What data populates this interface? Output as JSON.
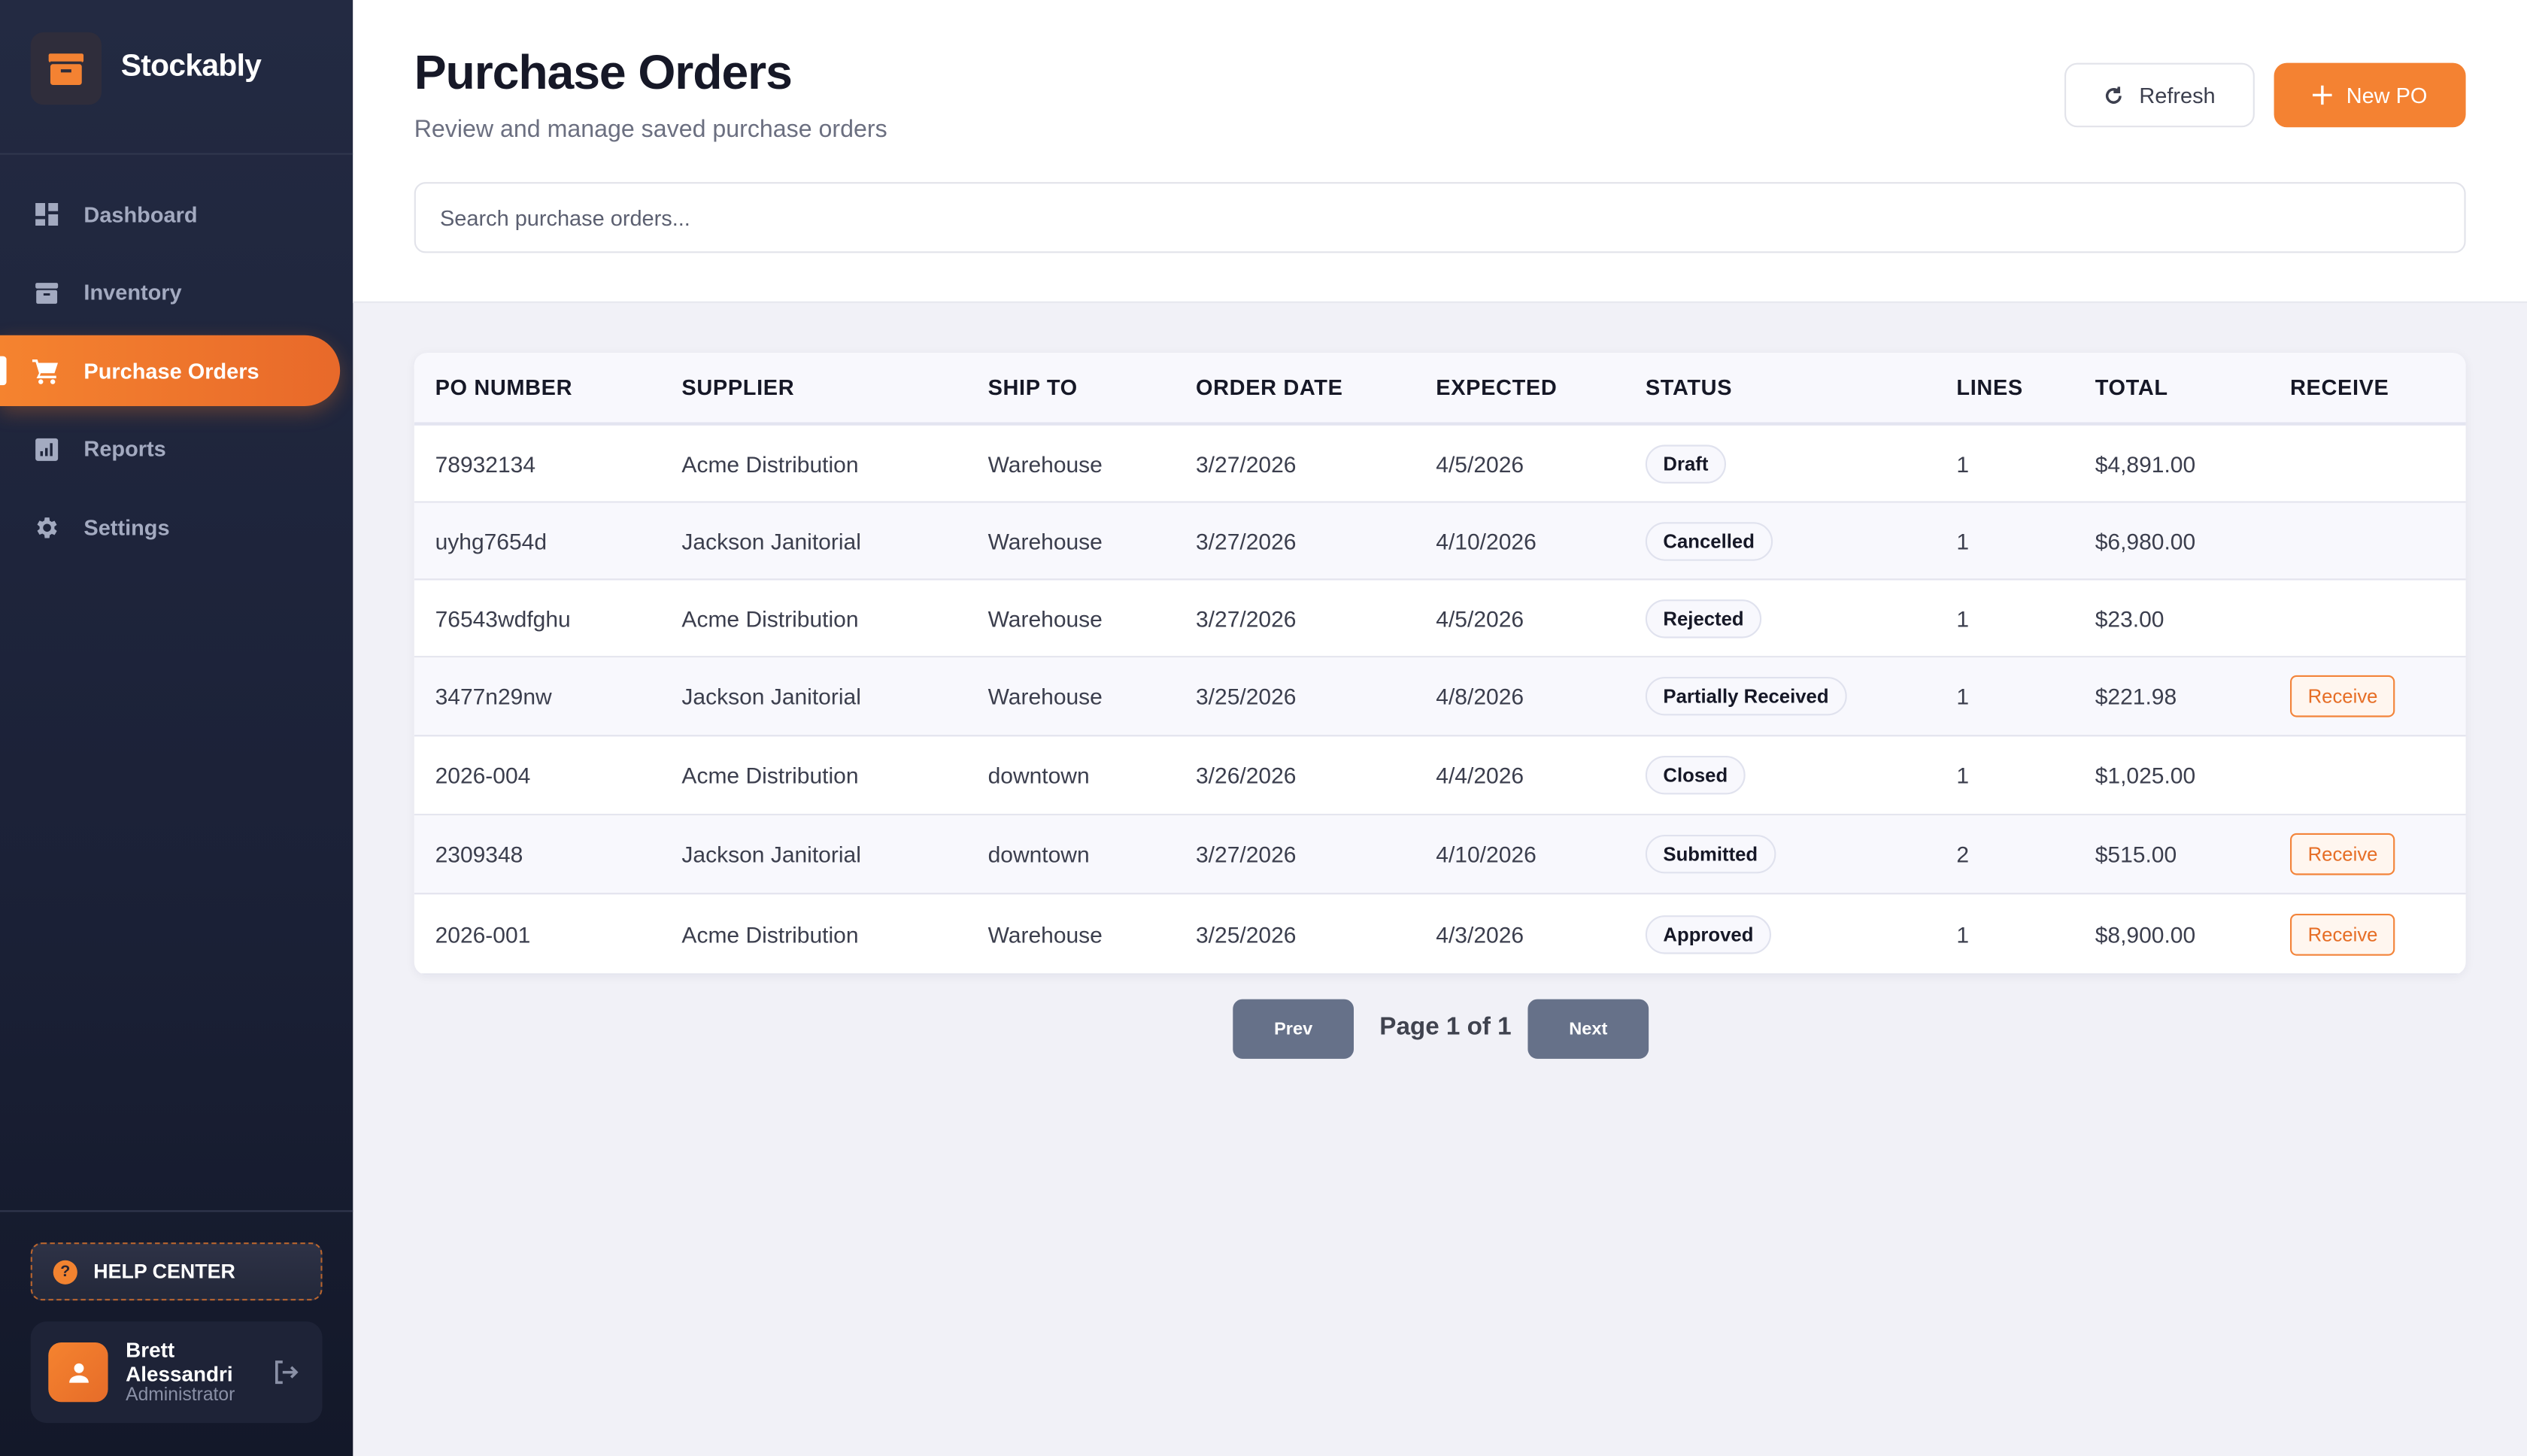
{
  "app": {
    "name": "Stockably",
    "accent": "#f48232"
  },
  "sidebar": {
    "items": [
      {
        "label": "Dashboard",
        "icon": "dashboard-icon"
      },
      {
        "label": "Inventory",
        "icon": "archive-box-icon"
      },
      {
        "label": "Purchase Orders",
        "icon": "cart-icon",
        "active": true
      },
      {
        "label": "Reports",
        "icon": "chart-icon"
      },
      {
        "label": "Settings",
        "icon": "gear-icon"
      }
    ],
    "help_label": "HELP CENTER",
    "user": {
      "name": "Brett Alessandri",
      "role": "Administrator"
    }
  },
  "header": {
    "title": "Purchase Orders",
    "subtitle": "Review and manage saved purchase orders",
    "refresh_label": "Refresh",
    "new_label": "New PO",
    "search_placeholder": "Search purchase orders..."
  },
  "table": {
    "columns": [
      "PO NUMBER",
      "SUPPLIER",
      "SHIP TO",
      "ORDER DATE",
      "EXPECTED",
      "STATUS",
      "LINES",
      "TOTAL",
      "RECEIVE"
    ],
    "rows": [
      {
        "po": "78932134",
        "supplier": "Acme Distribution",
        "ship_to": "Warehouse",
        "order_date": "3/27/2026",
        "expected": "4/5/2026",
        "status": "Draft",
        "lines": "1",
        "total": "$4,891.00",
        "receive": ""
      },
      {
        "po": "uyhg7654d",
        "supplier": "Jackson Janitorial",
        "ship_to": "Warehouse",
        "order_date": "3/27/2026",
        "expected": "4/10/2026",
        "status": "Cancelled",
        "lines": "1",
        "total": "$6,980.00",
        "receive": ""
      },
      {
        "po": "76543wdfghu",
        "supplier": "Acme Distribution",
        "ship_to": "Warehouse",
        "order_date": "3/27/2026",
        "expected": "4/5/2026",
        "status": "Rejected",
        "lines": "1",
        "total": "$23.00",
        "receive": ""
      },
      {
        "po": "3477n29nw",
        "supplier": "Jackson Janitorial",
        "ship_to": "Warehouse",
        "order_date": "3/25/2026",
        "expected": "4/8/2026",
        "status": "Partially Received",
        "lines": "1",
        "total": "$221.98",
        "receive": "Receive"
      },
      {
        "po": "2026-004",
        "supplier": "Acme Distribution",
        "ship_to": "downtown",
        "order_date": "3/26/2026",
        "expected": "4/4/2026",
        "status": "Closed",
        "lines": "1",
        "total": "$1,025.00",
        "receive": ""
      },
      {
        "po": "2309348",
        "supplier": "Jackson Janitorial",
        "ship_to": "downtown",
        "order_date": "3/27/2026",
        "expected": "4/10/2026",
        "status": "Submitted",
        "lines": "2",
        "total": "$515.00",
        "receive": "Receive"
      },
      {
        "po": "2026-001",
        "supplier": "Acme Distribution",
        "ship_to": "Warehouse",
        "order_date": "3/25/2026",
        "expected": "4/3/2026",
        "status": "Approved",
        "lines": "1",
        "total": "$8,900.00",
        "receive": "Receive"
      }
    ]
  },
  "pagination": {
    "prev_label": "Prev",
    "next_label": "Next",
    "page_text": "Page 1 of 1"
  }
}
